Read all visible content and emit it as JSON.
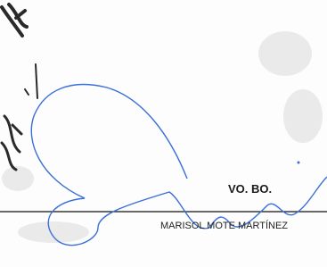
{
  "document": {
    "approval": "VO. BO.",
    "signatory": "MARISOL MOTE MARTÍNEZ"
  }
}
